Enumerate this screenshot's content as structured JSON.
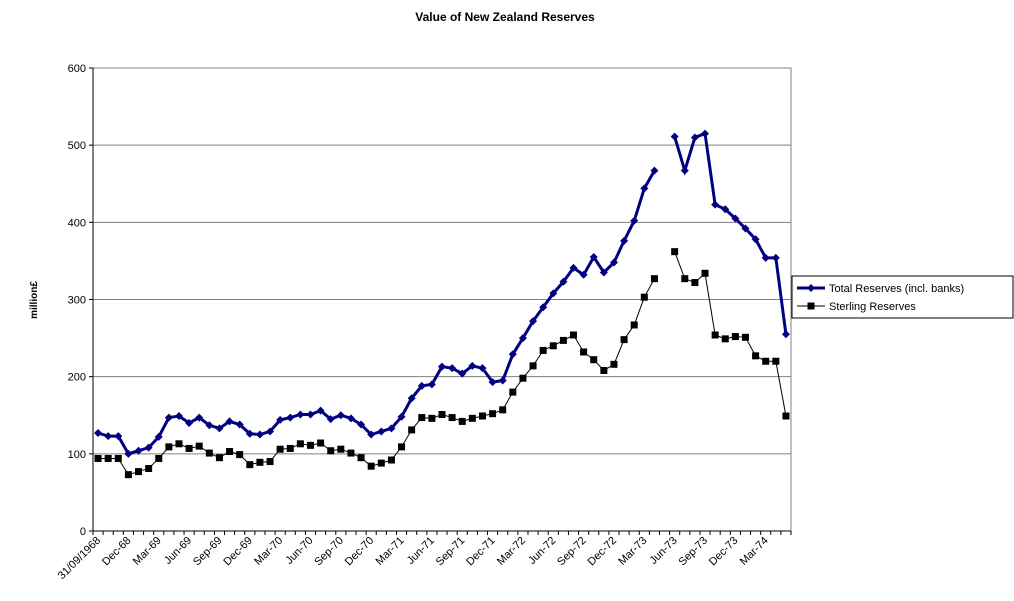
{
  "chart_data": {
    "type": "line",
    "title": "Value of New Zealand Reserves",
    "y_label": "million£",
    "categories": [
      "31/09/1968",
      null,
      null,
      "Dec-68",
      null,
      null,
      "Mar-69",
      null,
      null,
      "Jun-69",
      null,
      null,
      "Sep-69",
      null,
      null,
      "Dec-69",
      null,
      null,
      "Mar-70",
      null,
      null,
      "Jun-70",
      null,
      null,
      "Sep-70",
      null,
      null,
      "Dec-70",
      null,
      null,
      "Mar-71",
      null,
      null,
      "Jun-71",
      null,
      null,
      "Sep-71",
      null,
      null,
      "Dec-71",
      null,
      null,
      "Mar-72",
      null,
      null,
      "Jun-72",
      null,
      null,
      "Sep-72",
      null,
      null,
      "Dec-72",
      null,
      null,
      "Mar-73",
      null,
      null,
      "Jun-73",
      null,
      null,
      "Sep-73",
      null,
      null,
      "Dec-73",
      null,
      null,
      "Mar-74",
      null,
      null
    ],
    "series": [
      {
        "name": "Total Reserves (incl. banks)",
        "color": "#000080",
        "marker": "diamond",
        "values": [
          127,
          123,
          123,
          100,
          104,
          108,
          122,
          147,
          149,
          140,
          147,
          137,
          133,
          142,
          138,
          126,
          125,
          129,
          144,
          147,
          151,
          151,
          156,
          145,
          150,
          146,
          138,
          125,
          129,
          133,
          148,
          172,
          188,
          190,
          213,
          211,
          204,
          214,
          211,
          193,
          195,
          229,
          250,
          272,
          290,
          308,
          323,
          341,
          332,
          355,
          335,
          348,
          376,
          402,
          444,
          467,
          null,
          511,
          467,
          510,
          515,
          423,
          417,
          405,
          392,
          378,
          354,
          354,
          255
        ]
      },
      {
        "name": "Sterling Reserves",
        "color": "#000000",
        "marker": "square",
        "values": [
          94,
          94,
          94,
          73,
          77,
          81,
          94,
          109,
          113,
          107,
          110,
          101,
          95,
          103,
          99,
          86,
          89,
          90,
          106,
          107,
          113,
          111,
          114,
          104,
          106,
          101,
          95,
          84,
          88,
          92,
          109,
          131,
          147,
          146,
          151,
          147,
          142,
          146,
          149,
          152,
          157,
          180,
          198,
          214,
          234,
          240,
          247,
          254,
          232,
          222,
          208,
          216,
          248,
          267,
          303,
          327,
          null,
          362,
          327,
          322,
          334,
          254,
          249,
          252,
          251,
          227,
          220,
          220,
          149
        ]
      }
    ],
    "ylim": [
      0,
      600
    ],
    "yticks": [
      0,
      100,
      200,
      300,
      400,
      500,
      600
    ],
    "grid": true,
    "legend": "right"
  }
}
